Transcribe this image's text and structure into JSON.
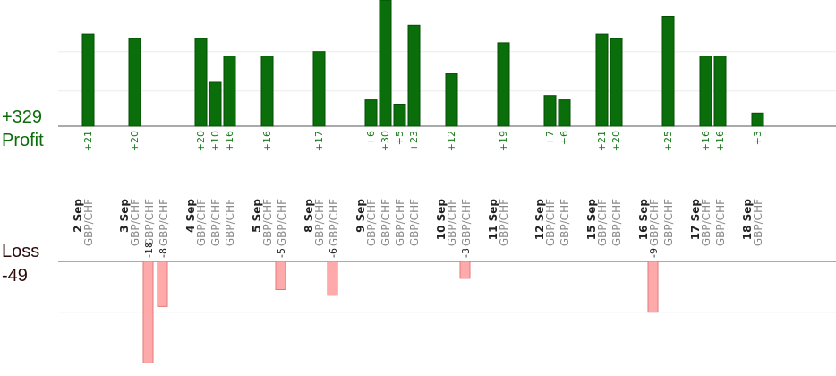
{
  "summary": {
    "profit_total": "+329",
    "profit_label": "Profit",
    "loss_label": "Loss",
    "loss_total": "-49"
  },
  "colors": {
    "profit_bar": "#0a6e0a",
    "profit_bar_edge": "#064d06",
    "loss_bar": "#ffaaaa",
    "loss_bar_edge": "#e07a7a",
    "axis": "#555555",
    "grid": "#ececec"
  },
  "chart_data": {
    "type": "bar",
    "ylim_profit": [
      0,
      28
    ],
    "ylim_loss": [
      -18,
      0
    ],
    "profit_gridlines": [
      8,
      17
    ],
    "loss_gridlines": [
      -9
    ],
    "groups": [
      {
        "date": "2 Sep",
        "trades": [
          {
            "pair": "GBP/CHF",
            "value": 21,
            "label": "+21"
          }
        ]
      },
      {
        "date": "3 Sep",
        "trades": [
          {
            "pair": "GBP/CHF",
            "value": 20,
            "label": "+20"
          },
          {
            "pair": "GBP/CHF",
            "value": -18,
            "label": "-18"
          },
          {
            "pair": "GBP/CHF",
            "value": -8,
            "label": "-8"
          }
        ]
      },
      {
        "date": "4 Sep",
        "trades": [
          {
            "pair": "GBP/CHF",
            "value": 20,
            "label": "+20"
          },
          {
            "pair": "GBP/CHF",
            "value": 10,
            "label": "+10"
          },
          {
            "pair": "GBP/CHF",
            "value": 16,
            "label": "+16"
          }
        ]
      },
      {
        "date": "5 Sep",
        "trades": [
          {
            "pair": "GBP/CHF",
            "value": 16,
            "label": "+16"
          },
          {
            "pair": "GBP/CHF",
            "value": -5,
            "label": "-5"
          }
        ]
      },
      {
        "date": "8 Sep",
        "trades": [
          {
            "pair": "GBP/CHF",
            "value": 17,
            "label": "+17"
          },
          {
            "pair": "GBP/CHF",
            "value": -6,
            "label": "-6"
          }
        ]
      },
      {
        "date": "9 Sep",
        "trades": [
          {
            "pair": "GBP/CHF",
            "value": 6,
            "label": "+6"
          },
          {
            "pair": "GBP/CHF",
            "value": 30,
            "label": "+30"
          },
          {
            "pair": "GBP/CHF",
            "value": 5,
            "label": "+5"
          },
          {
            "pair": "GBP/CHF",
            "value": 23,
            "label": "+23"
          }
        ]
      },
      {
        "date": "10 Sep",
        "trades": [
          {
            "pair": "GBP/CHF",
            "value": 12,
            "label": "+12"
          },
          {
            "pair": "GBP/CHF",
            "value": -3,
            "label": "-3"
          }
        ]
      },
      {
        "date": "11 Sep",
        "trades": [
          {
            "pair": "GBP/CHF",
            "value": 19,
            "label": "+19"
          }
        ]
      },
      {
        "date": "12 Sep",
        "trades": [
          {
            "pair": "GBP/CHF",
            "value": 7,
            "label": "+7"
          },
          {
            "pair": "GBP/CHF",
            "value": 6,
            "label": "+6"
          }
        ]
      },
      {
        "date": "15 Sep",
        "trades": [
          {
            "pair": "GBP/CHF",
            "value": 21,
            "label": "+21"
          },
          {
            "pair": "GBP/CHF",
            "value": 20,
            "label": "+20"
          }
        ]
      },
      {
        "date": "16 Sep",
        "trades": [
          {
            "pair": "GBP/CHF",
            "value": -9,
            "label": "-9"
          },
          {
            "pair": "GBP/CHF",
            "value": 25,
            "label": "+25"
          }
        ]
      },
      {
        "date": "17 Sep",
        "trades": [
          {
            "pair": "GBP/CHF",
            "value": 16,
            "label": "+16"
          },
          {
            "pair": "GBP/CHF",
            "value": 16,
            "label": "+16"
          }
        ]
      },
      {
        "date": "18 Sep",
        "trades": [
          {
            "pair": "GBP/CHF",
            "value": 3,
            "label": "+3"
          }
        ]
      }
    ]
  }
}
